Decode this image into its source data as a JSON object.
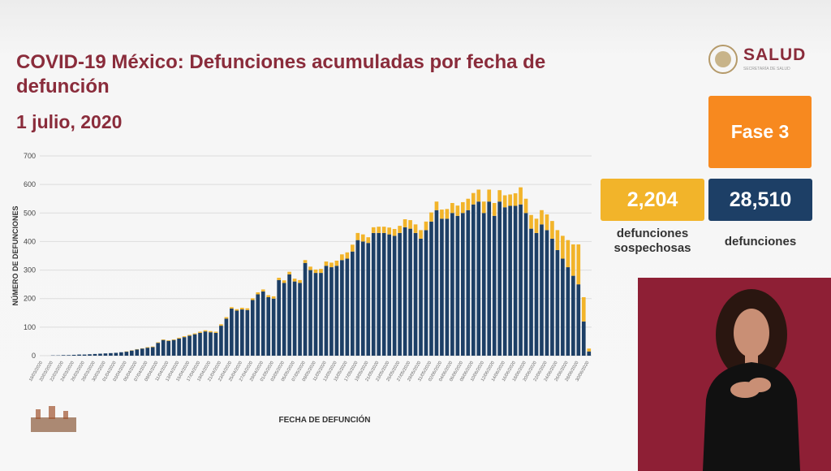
{
  "header": {
    "logo": "SALUD",
    "logo_subtitle": "SECRETARÍA DE SALUD",
    "phase": "Fase 3"
  },
  "summary": {
    "suspected_value": "2,204",
    "suspected_label": "defunciones sospechosas",
    "confirmed_value": "28,510",
    "confirmed_label": "defunciones"
  },
  "chart_data": {
    "type": "bar",
    "stacked": true,
    "title": "COVID-19 México: Defunciones acumuladas por fecha de defunción",
    "subtitle": "1 julio, 2020",
    "x_label": "FECHA DE DEFUNCIÓN",
    "y_label": "NÚMERO DE DEFUNCIONES",
    "categories": [
      "18/03/2020",
      null,
      "20/03/2020",
      null,
      "22/03/2020",
      null,
      "24/03/2020",
      null,
      "26/03/2020",
      null,
      "28/03/2020",
      null,
      "30/03/2020",
      null,
      "01/04/2020",
      null,
      "03/04/2020",
      null,
      "05/04/2020",
      null,
      "07/04/2020",
      null,
      "09/04/2020",
      null,
      "11/04/2020",
      null,
      "13/04/2020",
      null,
      "15/04/2020",
      null,
      "17/04/2020",
      null,
      "19/04/2020",
      null,
      "21/04/2020",
      null,
      "23/04/2020",
      null,
      "25/04/2020",
      null,
      "27/04/2020",
      null,
      "29/04/2020",
      null,
      "01/05/2020",
      null,
      "03/05/2020",
      null,
      "05/05/2020",
      null,
      "07/05/2020",
      null,
      "09/05/2020",
      null,
      "11/05/2020",
      null,
      "13/05/2020",
      null,
      "15/05/2020",
      null,
      "17/05/2020",
      null,
      "19/05/2020",
      null,
      "21/05/2020",
      null,
      "23/05/2020",
      null,
      "25/05/2020",
      null,
      "27/05/2020",
      null,
      "29/05/2020",
      null,
      "31/05/2020",
      null,
      "02/06/2020",
      null,
      "04/06/2020",
      null,
      "06/06/2020",
      null,
      "08/06/2020",
      null,
      "10/06/2020",
      null,
      "12/06/2020",
      null,
      "14/06/2020",
      null,
      "16/06/2020",
      null,
      "18/06/2020",
      null,
      "20/06/2020",
      null,
      "22/06/2020",
      null,
      "24/06/2020",
      null,
      "26/06/2020",
      null,
      "28/06/2020",
      null,
      "30/06/2020"
    ],
    "series": [
      {
        "color": "#1d3f66",
        "values": [
          0,
          0,
          1,
          1,
          2,
          2,
          3,
          4,
          4,
          5,
          6,
          7,
          8,
          9,
          10,
          12,
          14,
          18,
          22,
          25,
          28,
          30,
          45,
          55,
          52,
          55,
          60,
          65,
          70,
          75,
          80,
          85,
          82,
          80,
          105,
          130,
          165,
          158,
          162,
          160,
          195,
          215,
          225,
          205,
          200,
          265,
          255,
          285,
          260,
          255,
          325,
          300,
          290,
          290,
          315,
          310,
          315,
          335,
          340,
          365,
          405,
          400,
          395,
          430,
          430,
          430,
          425,
          420,
          430,
          450,
          445,
          430,
          410,
          440,
          470,
          510,
          480,
          480,
          500,
          490,
          500,
          510,
          530,
          540,
          500,
          540,
          490,
          540,
          520,
          525,
          525,
          530,
          500,
          445,
          430,
          460,
          440,
          410,
          370,
          340,
          310,
          280,
          250,
          120,
          15
        ]
      },
      {
        "color": "#f2b42a",
        "values": [
          0,
          0,
          0,
          0,
          0,
          0,
          0,
          0,
          0,
          0,
          0,
          0,
          0,
          0,
          0,
          0,
          1,
          1,
          1,
          1,
          2,
          2,
          2,
          2,
          2,
          2,
          3,
          3,
          3,
          3,
          4,
          4,
          4,
          4,
          5,
          5,
          5,
          5,
          6,
          6,
          6,
          7,
          7,
          7,
          8,
          8,
          9,
          9,
          10,
          10,
          10,
          12,
          12,
          14,
          15,
          16,
          18,
          20,
          22,
          24,
          25,
          25,
          20,
          20,
          22,
          22,
          24,
          24,
          25,
          28,
          30,
          30,
          30,
          30,
          32,
          30,
          32,
          34,
          35,
          36,
          38,
          40,
          40,
          42,
          40,
          42,
          45,
          40,
          42,
          40,
          44,
          60,
          50,
          48,
          50,
          50,
          55,
          62,
          70,
          80,
          95,
          110,
          140,
          85,
          10
        ]
      }
    ],
    "ylim": [
      0,
      700
    ],
    "yticks": [
      0,
      100,
      200,
      300,
      400,
      500,
      600,
      700
    ],
    "grid": true
  }
}
